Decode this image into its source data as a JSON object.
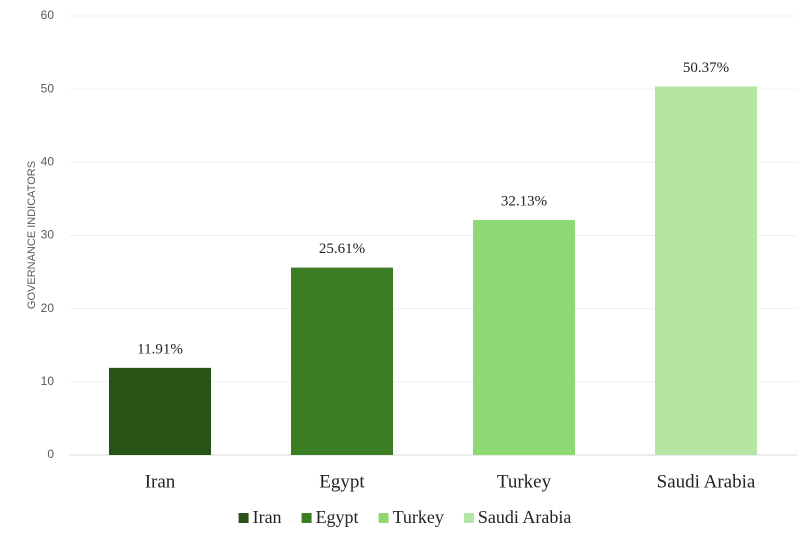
{
  "chart_data": {
    "type": "bar",
    "y_label": "GOVERNANCE INDICATORS",
    "categories": [
      "Iran",
      "Egypt",
      "Turkey",
      "Saudi Arabia"
    ],
    "values": [
      11.91,
      25.61,
      32.13,
      50.37
    ],
    "value_labels": [
      "11.91%",
      "25.61%",
      "32.13%",
      "50.37%"
    ],
    "colors": [
      "#275317",
      "#3a7d22",
      "#8ed973",
      "#b4e5a2"
    ],
    "ylim": [
      0,
      60
    ],
    "yticks": [
      0,
      10,
      20,
      30,
      40,
      50,
      60
    ],
    "grid": true,
    "legend": "bottom"
  }
}
